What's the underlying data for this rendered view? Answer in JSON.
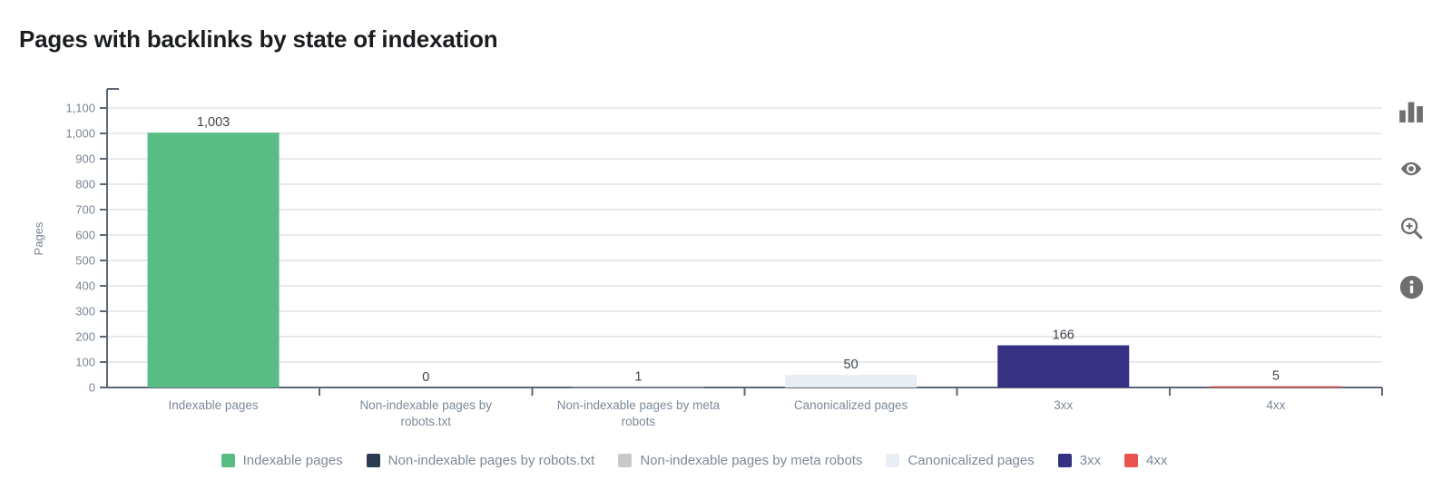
{
  "page": {
    "title": "Pages with backlinks by state of indexation"
  },
  "chart_data": {
    "type": "bar",
    "title": "Pages with backlinks by state of indexation",
    "xlabel": "",
    "ylabel": "Pages",
    "categories": [
      "Indexable pages",
      "Non-indexable pages by robots.txt",
      "Non-indexable pages by meta robots",
      "Canonicalized pages",
      "3xx",
      "4xx"
    ],
    "category_lines": [
      [
        "Indexable pages"
      ],
      [
        "Non-indexable pages by",
        "robots.txt"
      ],
      [
        "Non-indexable pages by meta",
        "robots"
      ],
      [
        "Canonicalized pages"
      ],
      [
        "3xx"
      ],
      [
        "4xx"
      ]
    ],
    "values": [
      1003,
      0,
      1,
      50,
      166,
      5
    ],
    "value_labels": [
      "1,003",
      "0",
      "1",
      "50",
      "166",
      "5"
    ],
    "bar_colors": [
      "#57bd84",
      "#2c3c50",
      "#c9c9c9",
      "#e9eef4",
      "#373183",
      "#e85450"
    ],
    "yticks": [
      0,
      100,
      200,
      300,
      400,
      500,
      600,
      700,
      800,
      900,
      1000,
      1100
    ],
    "ytick_labels": [
      "0",
      "100",
      "200",
      "300",
      "400",
      "500",
      "600",
      "700",
      "800",
      "900",
      "1,000",
      "1,100"
    ],
    "ylim": [
      0,
      1100
    ],
    "grid": true,
    "legend_position": "bottom"
  },
  "legend": {
    "items": [
      {
        "label": "Indexable pages",
        "color": "#57bd84"
      },
      {
        "label": "Non-indexable pages by robots.txt",
        "color": "#2c3c50"
      },
      {
        "label": "Non-indexable pages by meta robots",
        "color": "#c9c9c9"
      },
      {
        "label": "Canonicalized pages",
        "color": "#e9eef4"
      },
      {
        "label": "3xx",
        "color": "#373183"
      },
      {
        "label": "4xx",
        "color": "#e85450"
      }
    ]
  },
  "toolbar": {
    "icons": [
      "bar-chart-icon",
      "eye-icon",
      "zoom-in-icon",
      "info-icon"
    ]
  },
  "colors": {
    "grid": "#cdd4dc",
    "axis": "#5d6876",
    "ytick_label": "#7a8591",
    "category_label": "#7b8999",
    "value_label": "#3e4349",
    "title": "#1b1e21",
    "legend_label": "#7d8999",
    "icon": "#6f6f6f"
  }
}
